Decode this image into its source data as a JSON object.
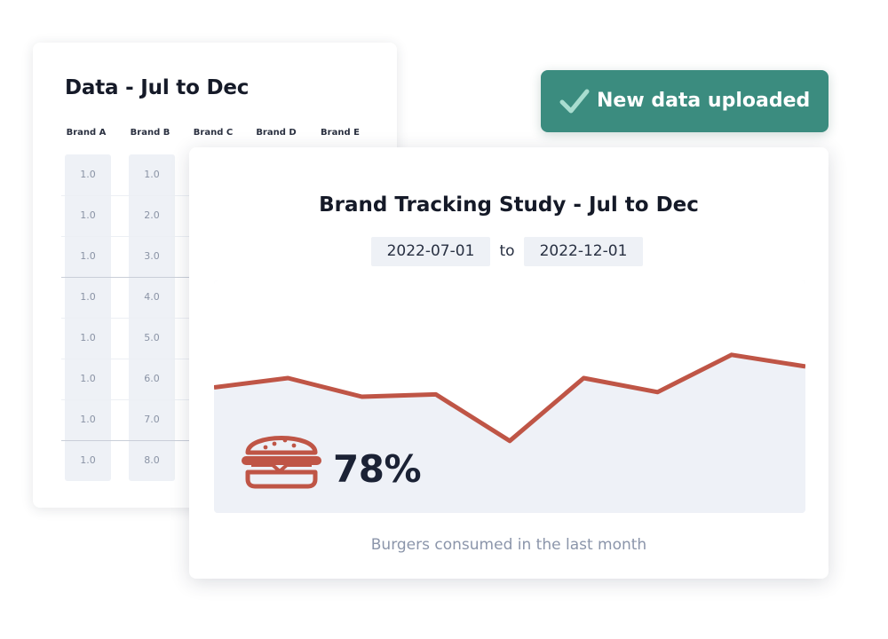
{
  "data_card": {
    "title": "Data - Jul to Dec",
    "columns": [
      "Brand A",
      "Brand B",
      "Brand C",
      "Brand D",
      "Brand E"
    ],
    "brand_a_values": [
      "1.0",
      "1.0",
      "1.0",
      "1.0",
      "1.0",
      "1.0",
      "1.0",
      "1.0"
    ],
    "brand_b_values": [
      "1.0",
      "2.0",
      "3.0",
      "4.0",
      "5.0",
      "6.0",
      "7.0",
      "8.0"
    ]
  },
  "toast": {
    "label": "New data uploaded",
    "icon": "check-icon",
    "color": "#3b8c7f"
  },
  "chart_card": {
    "title": "Brand Tracking Study - Jul to Dec",
    "date_start": "2022-07-01",
    "date_separator": "to",
    "date_end": "2022-12-01",
    "stat_value": "78%",
    "stat_icon": "burger-icon",
    "caption": "Burgers consumed in the last month",
    "line_color": "#bf5546",
    "area_color": "#eef1f7"
  },
  "chart_data": {
    "type": "line",
    "title": "Brand Tracking Study - Jul to Dec",
    "xlabel": "",
    "ylabel": "",
    "x_range": [
      "2022-07-01",
      "2022-12-01"
    ],
    "values": [
      54,
      58,
      50,
      51,
      31,
      58,
      52,
      68,
      63
    ],
    "ylim": [
      0,
      100
    ],
    "grid": false,
    "legend": "none"
  }
}
